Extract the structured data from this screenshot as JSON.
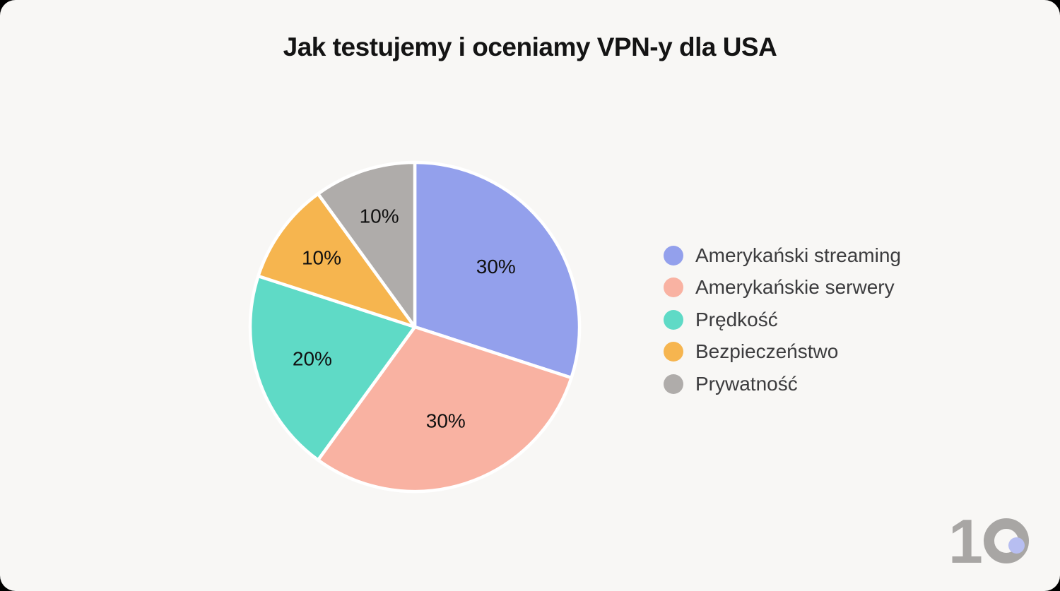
{
  "title": "Jak testujemy i oceniamy VPN-y dla USA",
  "chart_data": {
    "type": "pie",
    "title": "Jak testujemy i oceniamy VPN-y dla USA",
    "categories": [
      "Amerykański streaming",
      "Amerykańskie serwery",
      "Prędkość",
      "Bezpieczeństwo",
      "Prywatność"
    ],
    "values": [
      30,
      30,
      20,
      10,
      10
    ],
    "labels": [
      "30%",
      "30%",
      "20%",
      "10%",
      "10%"
    ],
    "colors": [
      "#93A0EC",
      "#F9B2A2",
      "#5FDAC6",
      "#F6B54F",
      "#AFACAA"
    ],
    "start_angle_deg": 0,
    "direction": "clockwise",
    "slice_stroke_color": "#FFFFFF",
    "legend_position": "right"
  },
  "legend": {
    "items": [
      {
        "label": "Amerykański streaming",
        "color": "#93A0EC"
      },
      {
        "label": "Amerykańskie serwery",
        "color": "#F9B2A2"
      },
      {
        "label": "Prędkość",
        "color": "#5FDAC6"
      },
      {
        "label": "Bezpieczeństwo",
        "color": "#F6B54F"
      },
      {
        "label": "Prywatność",
        "color": "#AFACAA"
      }
    ]
  },
  "logo": {
    "digit": "1",
    "ring_color": "#A8A6A4",
    "dot_color": "#B7BEF1"
  },
  "colors": {
    "card_background": "#F8F7F5",
    "outside_background": "#000000",
    "title_text": "#141414",
    "legend_text": "#3C3C3E",
    "slice_label_text": "#101010"
  }
}
